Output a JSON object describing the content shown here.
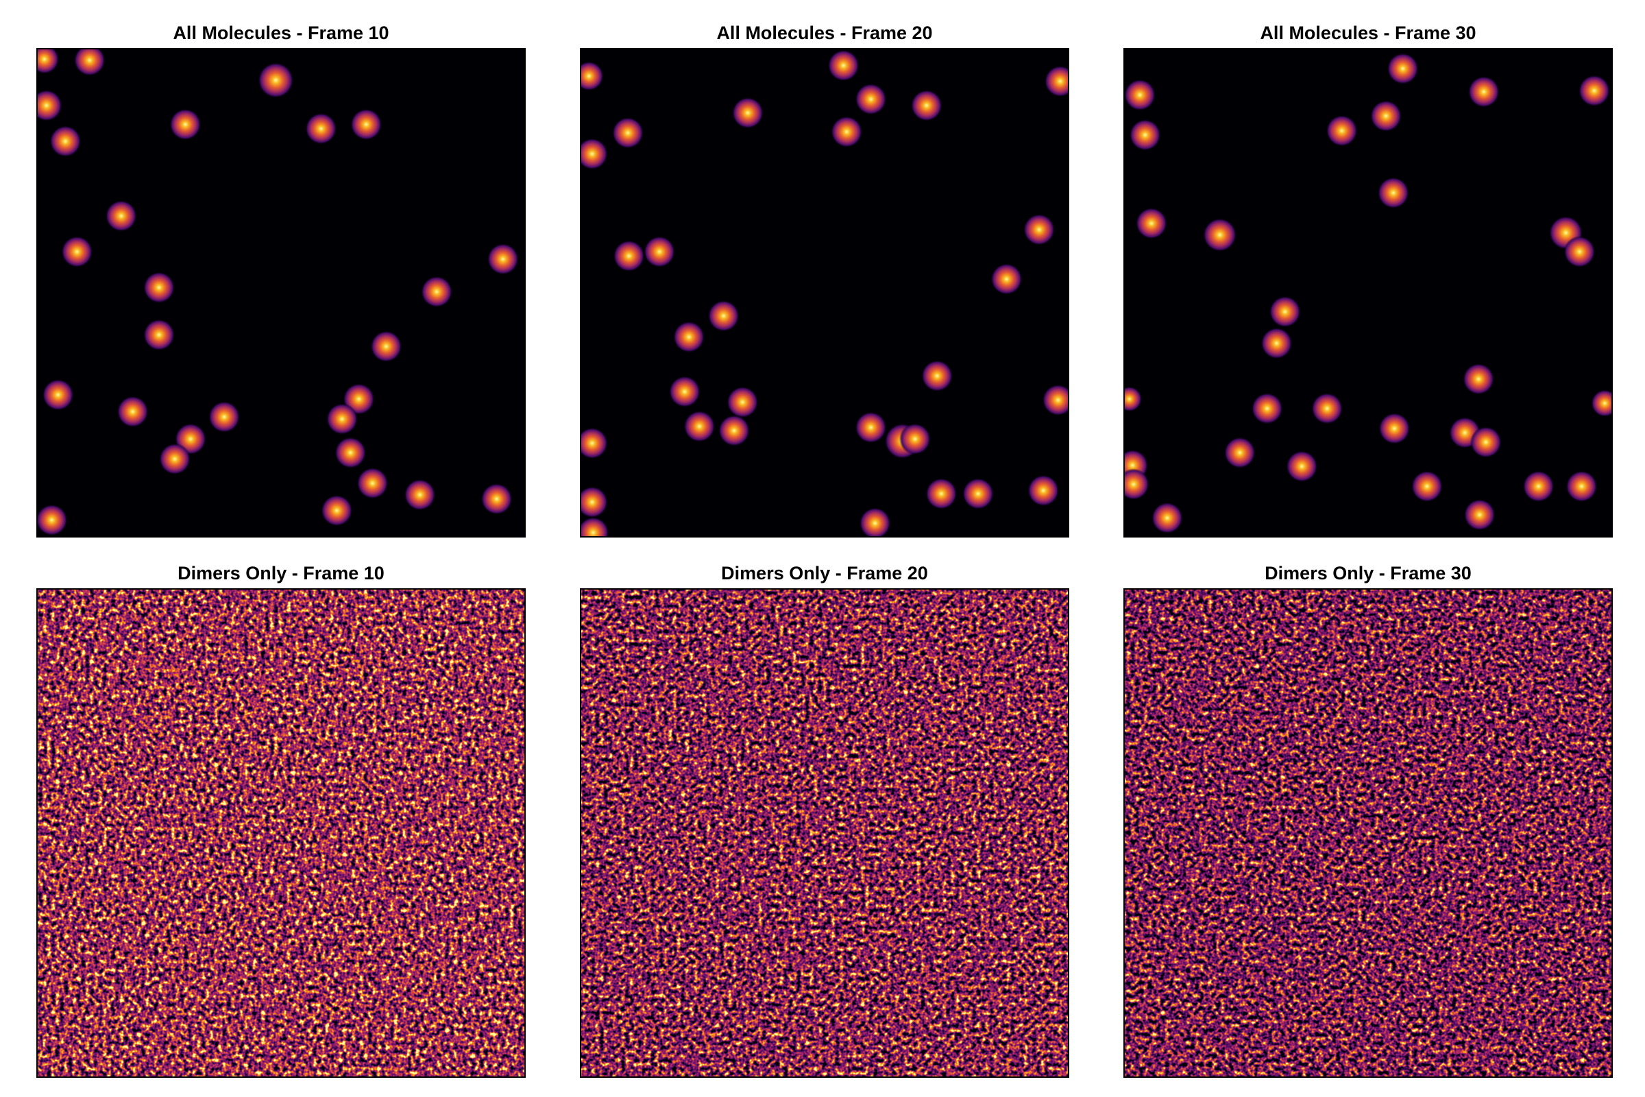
{
  "chart_data": [
    {
      "type": "image",
      "title": "All Molecules - Frame 10"
    },
    {
      "type": "image",
      "title": "All Molecules - Frame 20"
    },
    {
      "type": "image",
      "title": "All Molecules - Frame 30"
    },
    {
      "type": "image",
      "title": "Dimers Only - Frame 10"
    },
    {
      "type": "image",
      "title": "Dimers Only - Frame 20"
    },
    {
      "type": "image",
      "title": "Dimers Only - Frame 30"
    }
  ]
}
